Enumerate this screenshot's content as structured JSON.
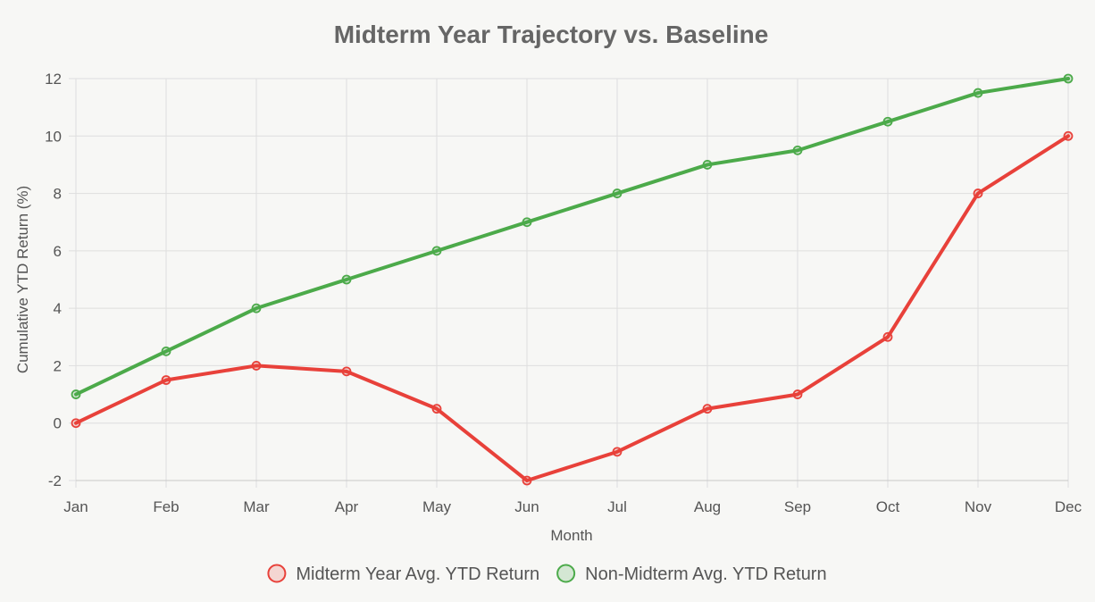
{
  "chart_data": {
    "type": "line",
    "title": "Midterm Year Trajectory vs. Baseline",
    "xlabel": "Month",
    "ylabel": "Cumulative YTD Return (%)",
    "categories": [
      "Jan",
      "Feb",
      "Mar",
      "Apr",
      "May",
      "Jun",
      "Jul",
      "Aug",
      "Sep",
      "Oct",
      "Nov",
      "Dec"
    ],
    "ylim": [
      -2,
      12
    ],
    "yticks": [
      -2,
      0,
      2,
      4,
      6,
      8,
      10,
      12
    ],
    "grid": true,
    "legend_position": "bottom",
    "series": [
      {
        "name": "Midterm Year Avg. YTD Return",
        "color": "#e8413a",
        "fill": "rgba(232,65,58,0.18)",
        "values": [
          0,
          1.5,
          2,
          1.8,
          0.5,
          -2,
          -1,
          0.5,
          1,
          3,
          8,
          10
        ]
      },
      {
        "name": "Non-Midterm Avg. YTD Return",
        "color": "#4caa4a",
        "fill": "rgba(76,170,74,0.20)",
        "values": [
          1,
          2.5,
          4,
          5,
          6,
          7,
          8,
          9,
          9.5,
          10.5,
          11.5,
          12
        ]
      }
    ]
  }
}
